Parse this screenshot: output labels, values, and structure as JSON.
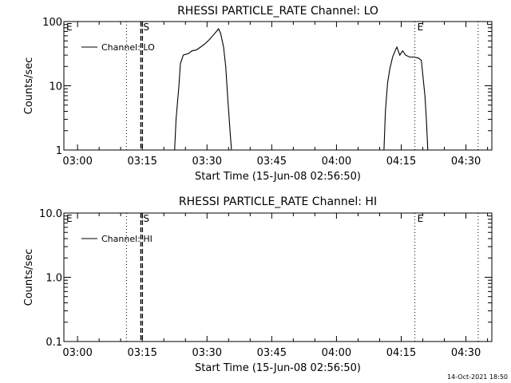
{
  "footer_timestamp": "14-Oct-2021 18:50",
  "chart_data": [
    {
      "type": "line",
      "title": "RHESSI PARTICLE_RATE Channel: LO",
      "xlabel": "Start Time (15-Jun-08 02:56:50)",
      "ylabel": "Counts/sec",
      "y_scale": "log",
      "ylim": [
        1,
        100
      ],
      "xlim": [
        "02:56:50",
        "04:36:00"
      ],
      "x_tick_labels": [
        "03:00",
        "03:15",
        "03:30",
        "03:45",
        "04:00",
        "04:15",
        "04:30"
      ],
      "y_tick_labels": [
        "1",
        "10",
        "100"
      ],
      "legend": {
        "position": "top-left",
        "entries": [
          "Channel: LO"
        ]
      },
      "markers": [
        {
          "label": "E",
          "time": "02:56:50",
          "style": "none"
        },
        {
          "label": "",
          "time": "03:11:20",
          "style": "dotted"
        },
        {
          "label": "S",
          "time": "03:14:40",
          "style": "dashed"
        },
        {
          "label": "E",
          "time": "04:18:10",
          "style": "dotted"
        },
        {
          "label": "",
          "time": "04:32:50",
          "style": "dotted"
        }
      ],
      "series": [
        {
          "name": "Channel: LO",
          "segments": [
            [
              [
                "03:22:30",
                1.0
              ],
              [
                "03:22:50",
                3.0
              ],
              [
                "03:23:30",
                10.0
              ],
              [
                "03:23:50",
                22.0
              ],
              [
                "03:24:30",
                30.0
              ],
              [
                "03:25:50",
                32.0
              ],
              [
                "03:26:30",
                35.0
              ],
              [
                "03:27:30",
                36.0
              ],
              [
                "03:28:30",
                40.0
              ],
              [
                "03:29:30",
                45.0
              ],
              [
                "03:30:30",
                52.0
              ],
              [
                "03:31:30",
                62.0
              ],
              [
                "03:32:10",
                70.0
              ],
              [
                "03:32:40",
                77.0
              ],
              [
                "03:33:10",
                65.0
              ],
              [
                "03:33:50",
                40.0
              ],
              [
                "03:34:20",
                20.0
              ],
              [
                "03:34:50",
                6.0
              ],
              [
                "03:35:20",
                2.0
              ],
              [
                "03:35:40",
                1.0
              ]
            ],
            [
              [
                "04:11:00",
                1.0
              ],
              [
                "04:11:20",
                4.0
              ],
              [
                "04:11:50",
                11.0
              ],
              [
                "04:12:20",
                18.0
              ],
              [
                "04:13:00",
                28.0
              ],
              [
                "04:13:40",
                36.0
              ],
              [
                "04:14:00",
                40.0
              ],
              [
                "04:14:40",
                30.0
              ],
              [
                "04:15:20",
                35.0
              ],
              [
                "04:16:00",
                30.0
              ],
              [
                "04:17:00",
                28.0
              ],
              [
                "04:18:00",
                28.0
              ],
              [
                "04:19:00",
                27.0
              ],
              [
                "04:19:40",
                25.0
              ],
              [
                "04:20:00",
                15.0
              ],
              [
                "04:20:30",
                7.0
              ],
              [
                "04:20:50",
                3.0
              ],
              [
                "04:21:10",
                1.0
              ]
            ]
          ]
        }
      ]
    },
    {
      "type": "line",
      "title": "RHESSI PARTICLE_RATE Channel: HI",
      "xlabel": "Start Time (15-Jun-08 02:56:50)",
      "ylabel": "Counts/sec",
      "y_scale": "log",
      "ylim": [
        0.1,
        10
      ],
      "xlim": [
        "02:56:50",
        "04:36:00"
      ],
      "x_tick_labels": [
        "03:00",
        "03:15",
        "03:30",
        "03:45",
        "04:00",
        "04:15",
        "04:30"
      ],
      "y_tick_labels": [
        "0.1",
        "1.0",
        "10.0"
      ],
      "legend": {
        "position": "top-left",
        "entries": [
          "Channel: HI"
        ]
      },
      "markers": [
        {
          "label": "E",
          "time": "02:56:50",
          "style": "none"
        },
        {
          "label": "",
          "time": "03:11:20",
          "style": "dotted"
        },
        {
          "label": "S",
          "time": "03:14:40",
          "style": "dashed"
        },
        {
          "label": "E",
          "time": "04:18:10",
          "style": "dotted"
        },
        {
          "label": "",
          "time": "04:32:50",
          "style": "dotted"
        }
      ],
      "series": [
        {
          "name": "Channel: HI",
          "segments": []
        }
      ]
    }
  ]
}
